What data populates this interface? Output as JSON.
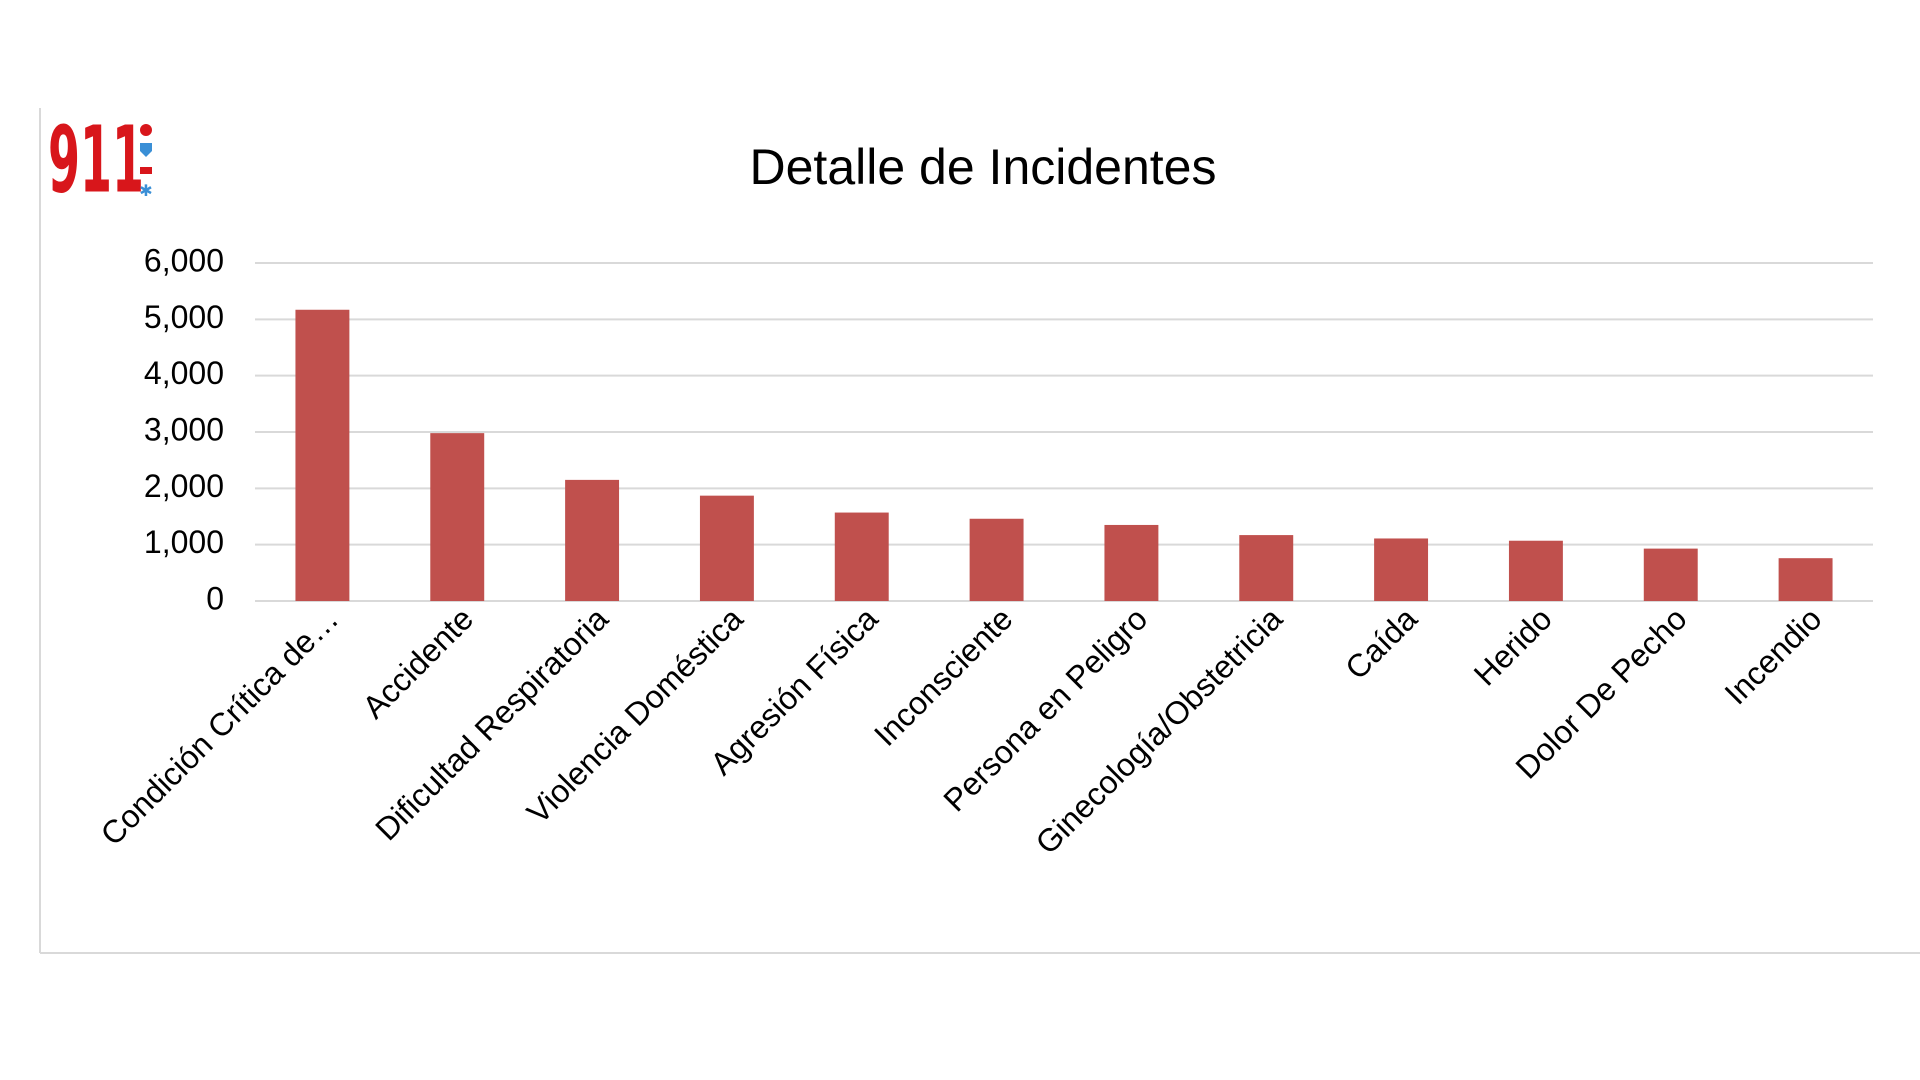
{
  "logo": "911",
  "chart_data": {
    "type": "bar",
    "title": "Detalle de Incidentes",
    "categories": [
      "Condición Crítica de…",
      "Accidente",
      "Dificultad Respiratoria",
      "Violencia Doméstica",
      "Agresión Física",
      "Inconsciente",
      "Persona en Peligro",
      "Ginecología/Obstetricia",
      "Caída",
      "Herido",
      "Dolor De Pecho",
      "Incendio"
    ],
    "values": [
      5170,
      2980,
      2150,
      1870,
      1570,
      1460,
      1350,
      1170,
      1110,
      1070,
      930,
      760
    ],
    "color": "#c0504d",
    "ylim": [
      0,
      6000
    ],
    "yticks": [
      0,
      {
        "value": 1000,
        "label": "1,000"
      },
      {
        "value": 2000,
        "label": "2,000"
      },
      {
        "value": 3000,
        "label": "3,000"
      },
      {
        "value": 4000,
        "label": "4,000"
      },
      {
        "value": 5000,
        "label": "5,000"
      },
      {
        "value": 6000,
        "label": "6,000"
      }
    ],
    "grid": true
  }
}
